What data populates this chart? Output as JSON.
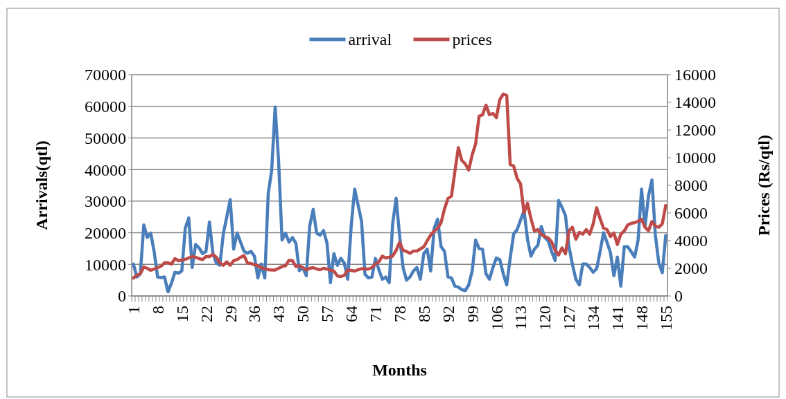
{
  "chart_data": {
    "type": "line",
    "xlabel": "Months",
    "ylabel": "Arrivals(qtl)",
    "y2label": "Prices (Rs/qtl)",
    "categories": [
      "1",
      null,
      null,
      null,
      null,
      null,
      null,
      "8",
      null,
      null,
      null,
      null,
      null,
      null,
      "15",
      null,
      null,
      null,
      null,
      null,
      null,
      "22",
      null,
      null,
      null,
      null,
      null,
      null,
      "29",
      null,
      null,
      null,
      null,
      null,
      null,
      "36",
      null,
      null,
      null,
      null,
      null,
      null,
      "43",
      null,
      null,
      null,
      null,
      null,
      null,
      "50",
      null,
      null,
      null,
      null,
      null,
      null,
      "57",
      null,
      null,
      null,
      null,
      null,
      null,
      "64",
      null,
      null,
      null,
      null,
      null,
      null,
      "71",
      null,
      null,
      null,
      null,
      null,
      null,
      "78",
      null,
      null,
      null,
      null,
      null,
      null,
      "85",
      null,
      null,
      null,
      null,
      null,
      null,
      "92",
      null,
      null,
      null,
      null,
      null,
      null,
      "99",
      null,
      null,
      null,
      null,
      null,
      null,
      "106",
      null,
      null,
      null,
      null,
      null,
      null,
      "113",
      null,
      null,
      null,
      null,
      null,
      null,
      "120",
      null,
      null,
      null,
      null,
      null,
      null,
      "127",
      null,
      null,
      null,
      null,
      null,
      null,
      "134",
      null,
      null,
      null,
      null,
      null,
      null,
      "141",
      null,
      null,
      null,
      null,
      null,
      null,
      "148",
      null,
      null,
      null,
      null,
      null,
      null,
      "155"
    ],
    "series": [
      {
        "name": "arrival",
        "color": "#4a7ebb",
        "values": [
          10100,
          6000,
          7000,
          22500,
          18500,
          19900,
          14000,
          6000,
          5800,
          6000,
          1300,
          4000,
          7500,
          7200,
          7900,
          21400,
          24700,
          9000,
          16300,
          15200,
          13400,
          14100,
          23400,
          13400,
          10400,
          9700,
          19600,
          25000,
          30500,
          14800,
          19900,
          17000,
          14100,
          13500,
          14100,
          12600,
          5700,
          10100,
          5700,
          32400,
          39700,
          59800,
          42600,
          17700,
          19900,
          17000,
          18500,
          16700,
          8000,
          9000,
          6400,
          22100,
          27400,
          19900,
          19200,
          20700,
          16700,
          4200,
          13400,
          9700,
          11900,
          10400,
          5300,
          22100,
          33800,
          28700,
          23600,
          6800,
          5700,
          6000,
          11900,
          8300,
          5300,
          6000,
          4200,
          22900,
          30900,
          19200,
          9000,
          5000,
          6000,
          7900,
          9000,
          5300,
          13400,
          14800,
          7900,
          21400,
          24300,
          15600,
          14100,
          6000,
          5700,
          3100,
          2800,
          2000,
          1700,
          3500,
          7900,
          17700,
          15000,
          14800,
          7000,
          5300,
          9000,
          12000,
          11500,
          7000,
          3500,
          12000,
          19600,
          21000,
          24000,
          27000,
          18000,
          12600,
          14800,
          16000,
          22000,
          18500,
          17400,
          14000,
          11200,
          30200,
          28000,
          25400,
          15600,
          10000,
          5300,
          3500,
          10100,
          10100,
          9000,
          7500,
          8600,
          14000,
          20000,
          17000,
          13700,
          6400,
          12300,
          3100,
          15600,
          15600,
          14000,
          12300,
          17700,
          33800,
          21800,
          31600,
          36700,
          19200,
          10400,
          7400,
          19200
        ]
      },
      {
        "name": "prices",
        "color": "#be4b48",
        "axis": "y2",
        "values": [
          1300,
          1500,
          1600,
          2100,
          2000,
          1850,
          1950,
          2050,
          2150,
          2400,
          2400,
          2300,
          2700,
          2550,
          2600,
          2650,
          2750,
          2850,
          2800,
          2700,
          2630,
          2850,
          2850,
          3000,
          2800,
          2400,
          2220,
          2470,
          2220,
          2550,
          2630,
          2800,
          2920,
          2380,
          2350,
          2250,
          2180,
          2050,
          1970,
          1900,
          1880,
          1880,
          2000,
          2130,
          2180,
          2580,
          2550,
          2130,
          2180,
          2050,
          1880,
          2000,
          2050,
          1950,
          1900,
          2000,
          1950,
          1850,
          1800,
          1450,
          1400,
          1500,
          1880,
          1850,
          1800,
          1900,
          1970,
          1950,
          1950,
          2050,
          2300,
          2470,
          2880,
          2750,
          2800,
          2880,
          3300,
          3880,
          3300,
          3220,
          3080,
          3250,
          3250,
          3400,
          3550,
          4000,
          4400,
          4700,
          4880,
          5300,
          6300,
          7050,
          7220,
          9000,
          10720,
          9800,
          9550,
          9100,
          10200,
          11000,
          13000,
          13100,
          13800,
          13100,
          13200,
          12900,
          14200,
          14600,
          14500,
          9500,
          9400,
          8500,
          8100,
          6000,
          6700,
          5600,
          4700,
          4800,
          4450,
          4300,
          4200,
          3900,
          3300,
          2970,
          3470,
          3050,
          4700,
          4970,
          4100,
          4600,
          4470,
          4800,
          4470,
          5200,
          6380,
          5600,
          4900,
          4800,
          4300,
          4550,
          3720,
          4470,
          4700,
          5130,
          5250,
          5300,
          5400,
          5550,
          4970,
          4720,
          5380,
          5050,
          4970,
          5220,
          6550
        ]
      }
    ],
    "ylim": [
      0,
      70000
    ],
    "yticks": [
      0,
      10000,
      20000,
      30000,
      40000,
      50000,
      60000,
      70000
    ],
    "y2lim": [
      0,
      16000
    ],
    "y2ticks": [
      0,
      2000,
      4000,
      6000,
      8000,
      10000,
      12000,
      14000,
      16000
    ],
    "grid": "y",
    "legend": "top",
    "line_style": "solid",
    "marker": "none"
  }
}
